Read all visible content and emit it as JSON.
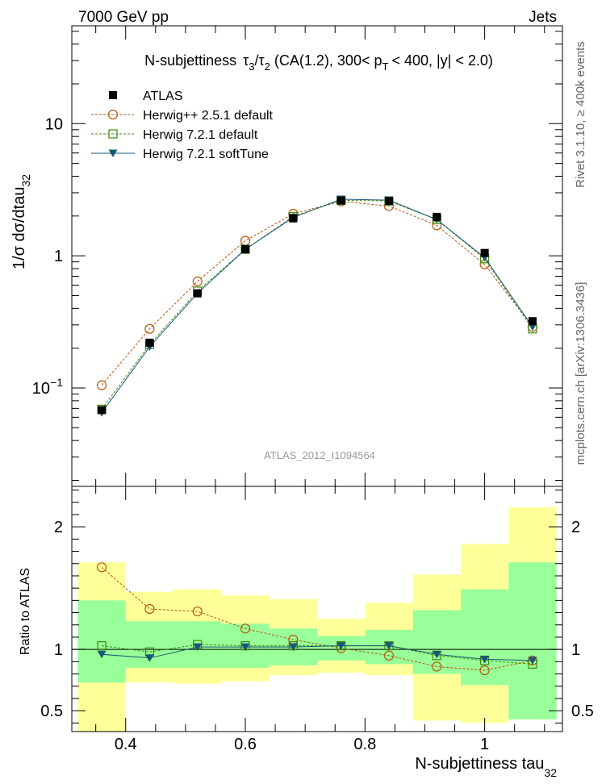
{
  "header": {
    "left": "7000 GeV pp",
    "right": "Jets"
  },
  "side_labels": {
    "top": "Rivet 3.1.10, ≥ 400k events",
    "bottom": "mcplots.cern.ch [arXiv:1306.3436]"
  },
  "chart_data": [
    {
      "type": "line",
      "panel": "main",
      "title_parts": {
        "prefix": "N-subjettiness",
        "tau": "τ",
        "sub3": "3",
        "slash": "/",
        "sub2": "2",
        "mid": "(CA(1.2), 300< p",
        "pt_sub": "T",
        "suffix": "< 400, |y| < 2.0)"
      },
      "ylabel": {
        "main": "1/σ dσ/dtau",
        "sub": "32"
      },
      "yscale": "log",
      "ylim": [
        0.018,
        55
      ],
      "xlim": [
        0.31,
        1.13
      ],
      "yticks": [
        {
          "v": 0.1,
          "base": "10",
          "exp": "−1"
        },
        {
          "v": 1,
          "label": "1"
        },
        {
          "v": 10,
          "label": "10"
        }
      ],
      "watermark": "ATLAS_2012_I1094564",
      "x": [
        0.36,
        0.44,
        0.52,
        0.6,
        0.68,
        0.76,
        0.84,
        0.92,
        1.0,
        1.08
      ],
      "series": [
        {
          "name": "ATLAS",
          "marker": "square-filled",
          "color": "#000000",
          "values": [
            0.068,
            0.22,
            0.52,
            1.12,
            1.92,
            2.62,
            2.6,
            1.97,
            1.05,
            0.32
          ]
        },
        {
          "name": "Herwig++ 2.5.1 default",
          "marker": "circle-open",
          "color": "#b8560a",
          "dashed": true,
          "values": [
            0.105,
            0.28,
            0.64,
            1.3,
            2.08,
            2.58,
            2.38,
            1.7,
            0.86,
            0.29
          ]
        },
        {
          "name": "Herwig 7.2.1 default",
          "marker": "square-open",
          "color": "#3e8c0e",
          "dashed": true,
          "values": [
            0.069,
            0.213,
            0.54,
            1.12,
            1.98,
            2.63,
            2.6,
            1.88,
            0.95,
            0.28
          ]
        },
        {
          "name": "Herwig 7.2.1 softTune",
          "marker": "triangle-down",
          "color": "#1a5776",
          "values": [
            0.065,
            0.205,
            0.52,
            1.12,
            1.95,
            2.68,
            2.64,
            1.88,
            0.97,
            0.29
          ]
        }
      ]
    },
    {
      "type": "line",
      "panel": "ratio",
      "ylabel": "Ratio to ATLAS",
      "xlabel": {
        "main": "N-subjettiness tau",
        "sub": "32"
      },
      "ylim": [
        0.33,
        2.33
      ],
      "yticks": [
        {
          "v": 0.5,
          "label": "0.5"
        },
        {
          "v": 1,
          "label": "1"
        },
        {
          "v": 2,
          "label": "2"
        }
      ],
      "xticks": [
        {
          "v": 0.4,
          "label": "0.4"
        },
        {
          "v": 0.6,
          "label": "0.6"
        },
        {
          "v": 0.8,
          "label": "0.8"
        },
        {
          "v": 1.0,
          "label": "1"
        }
      ],
      "bins": [
        [
          0.32,
          0.4
        ],
        [
          0.4,
          0.48
        ],
        [
          0.48,
          0.56
        ],
        [
          0.56,
          0.64
        ],
        [
          0.64,
          0.72
        ],
        [
          0.72,
          0.8
        ],
        [
          0.8,
          0.88
        ],
        [
          0.88,
          0.96
        ],
        [
          0.96,
          1.04
        ],
        [
          1.04,
          1.12
        ]
      ],
      "band_outer": [
        [
          0.33,
          1.71
        ],
        [
          0.73,
          1.47
        ],
        [
          0.72,
          1.49
        ],
        [
          0.74,
          1.44
        ],
        [
          0.79,
          1.41
        ],
        [
          0.81,
          1.25
        ],
        [
          0.79,
          1.38
        ],
        [
          0.42,
          1.61
        ],
        [
          0.4,
          1.86
        ],
        [
          0.43,
          2.16
        ]
      ],
      "band_inner": [
        [
          0.73,
          1.4
        ],
        [
          0.85,
          1.23
        ],
        [
          0.85,
          1.23
        ],
        [
          0.85,
          1.21
        ],
        [
          0.87,
          1.17
        ],
        [
          0.91,
          1.11
        ],
        [
          0.88,
          1.16
        ],
        [
          0.8,
          1.32
        ],
        [
          0.71,
          1.49
        ],
        [
          0.43,
          1.71
        ]
      ],
      "x": [
        0.36,
        0.44,
        0.52,
        0.6,
        0.68,
        0.76,
        0.84,
        0.92,
        1.0,
        1.08
      ],
      "series": [
        {
          "name": "Herwig++ 2.5.1 default",
          "marker": "circle-open",
          "color": "#b8560a",
          "dashed": true,
          "values": [
            1.67,
            1.33,
            1.31,
            1.17,
            1.08,
            1.01,
            0.95,
            0.86,
            0.83,
            0.91
          ]
        },
        {
          "name": "Herwig 7.2.1 default",
          "marker": "square-open",
          "color": "#3e8c0e",
          "dashed": true,
          "values": [
            1.03,
            0.98,
            1.04,
            1.03,
            1.03,
            1.03,
            1.03,
            0.95,
            0.91,
            0.88
          ]
        },
        {
          "name": "Herwig 7.2.1 softTune",
          "marker": "triangle-down",
          "color": "#1a5776",
          "values": [
            0.96,
            0.93,
            1.02,
            1.02,
            1.02,
            1.03,
            1.03,
            0.96,
            0.92,
            0.91
          ]
        }
      ]
    }
  ],
  "colors": {
    "band_outer": "#ffff99",
    "band_inner": "#99ff99"
  }
}
